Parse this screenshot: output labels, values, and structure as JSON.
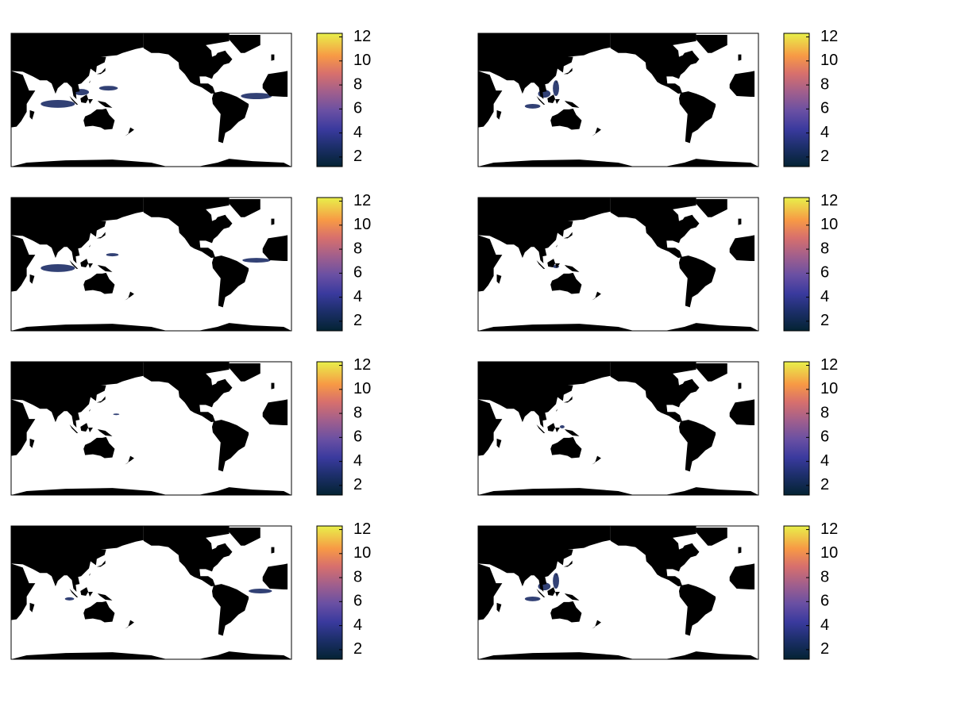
{
  "panels": [
    {
      "colorbar": {
        "clim": [
          1.2,
          12.3
        ],
        "ticks": [
          2,
          4,
          6,
          8,
          10,
          12
        ]
      }
    },
    {
      "colorbar": {
        "clim": [
          1.2,
          12.3
        ],
        "ticks": [
          2,
          4,
          6,
          8,
          10,
          12
        ]
      }
    },
    {
      "colorbar": {
        "clim": [
          1.2,
          12.3
        ],
        "ticks": [
          2,
          4,
          6,
          8,
          10,
          12
        ]
      }
    },
    {
      "colorbar": {
        "clim": [
          1.2,
          12.3
        ],
        "ticks": [
          2,
          4,
          6,
          8,
          10,
          12
        ]
      }
    },
    {
      "colorbar": {
        "clim": [
          1.2,
          12.3
        ],
        "ticks": [
          2,
          4,
          6,
          8,
          10,
          12
        ]
      }
    },
    {
      "colorbar": {
        "clim": [
          1.2,
          12.3
        ],
        "ticks": [
          2,
          4,
          6,
          8,
          10,
          12
        ]
      }
    },
    {
      "colorbar": {
        "clim": [
          1.2,
          12.3
        ],
        "ticks": [
          2,
          4,
          6,
          8,
          10,
          12
        ]
      }
    },
    {
      "colorbar": {
        "clim": [
          1.2,
          12.3
        ],
        "ticks": [
          2,
          4,
          6,
          8,
          10,
          12
        ]
      }
    }
  ]
}
